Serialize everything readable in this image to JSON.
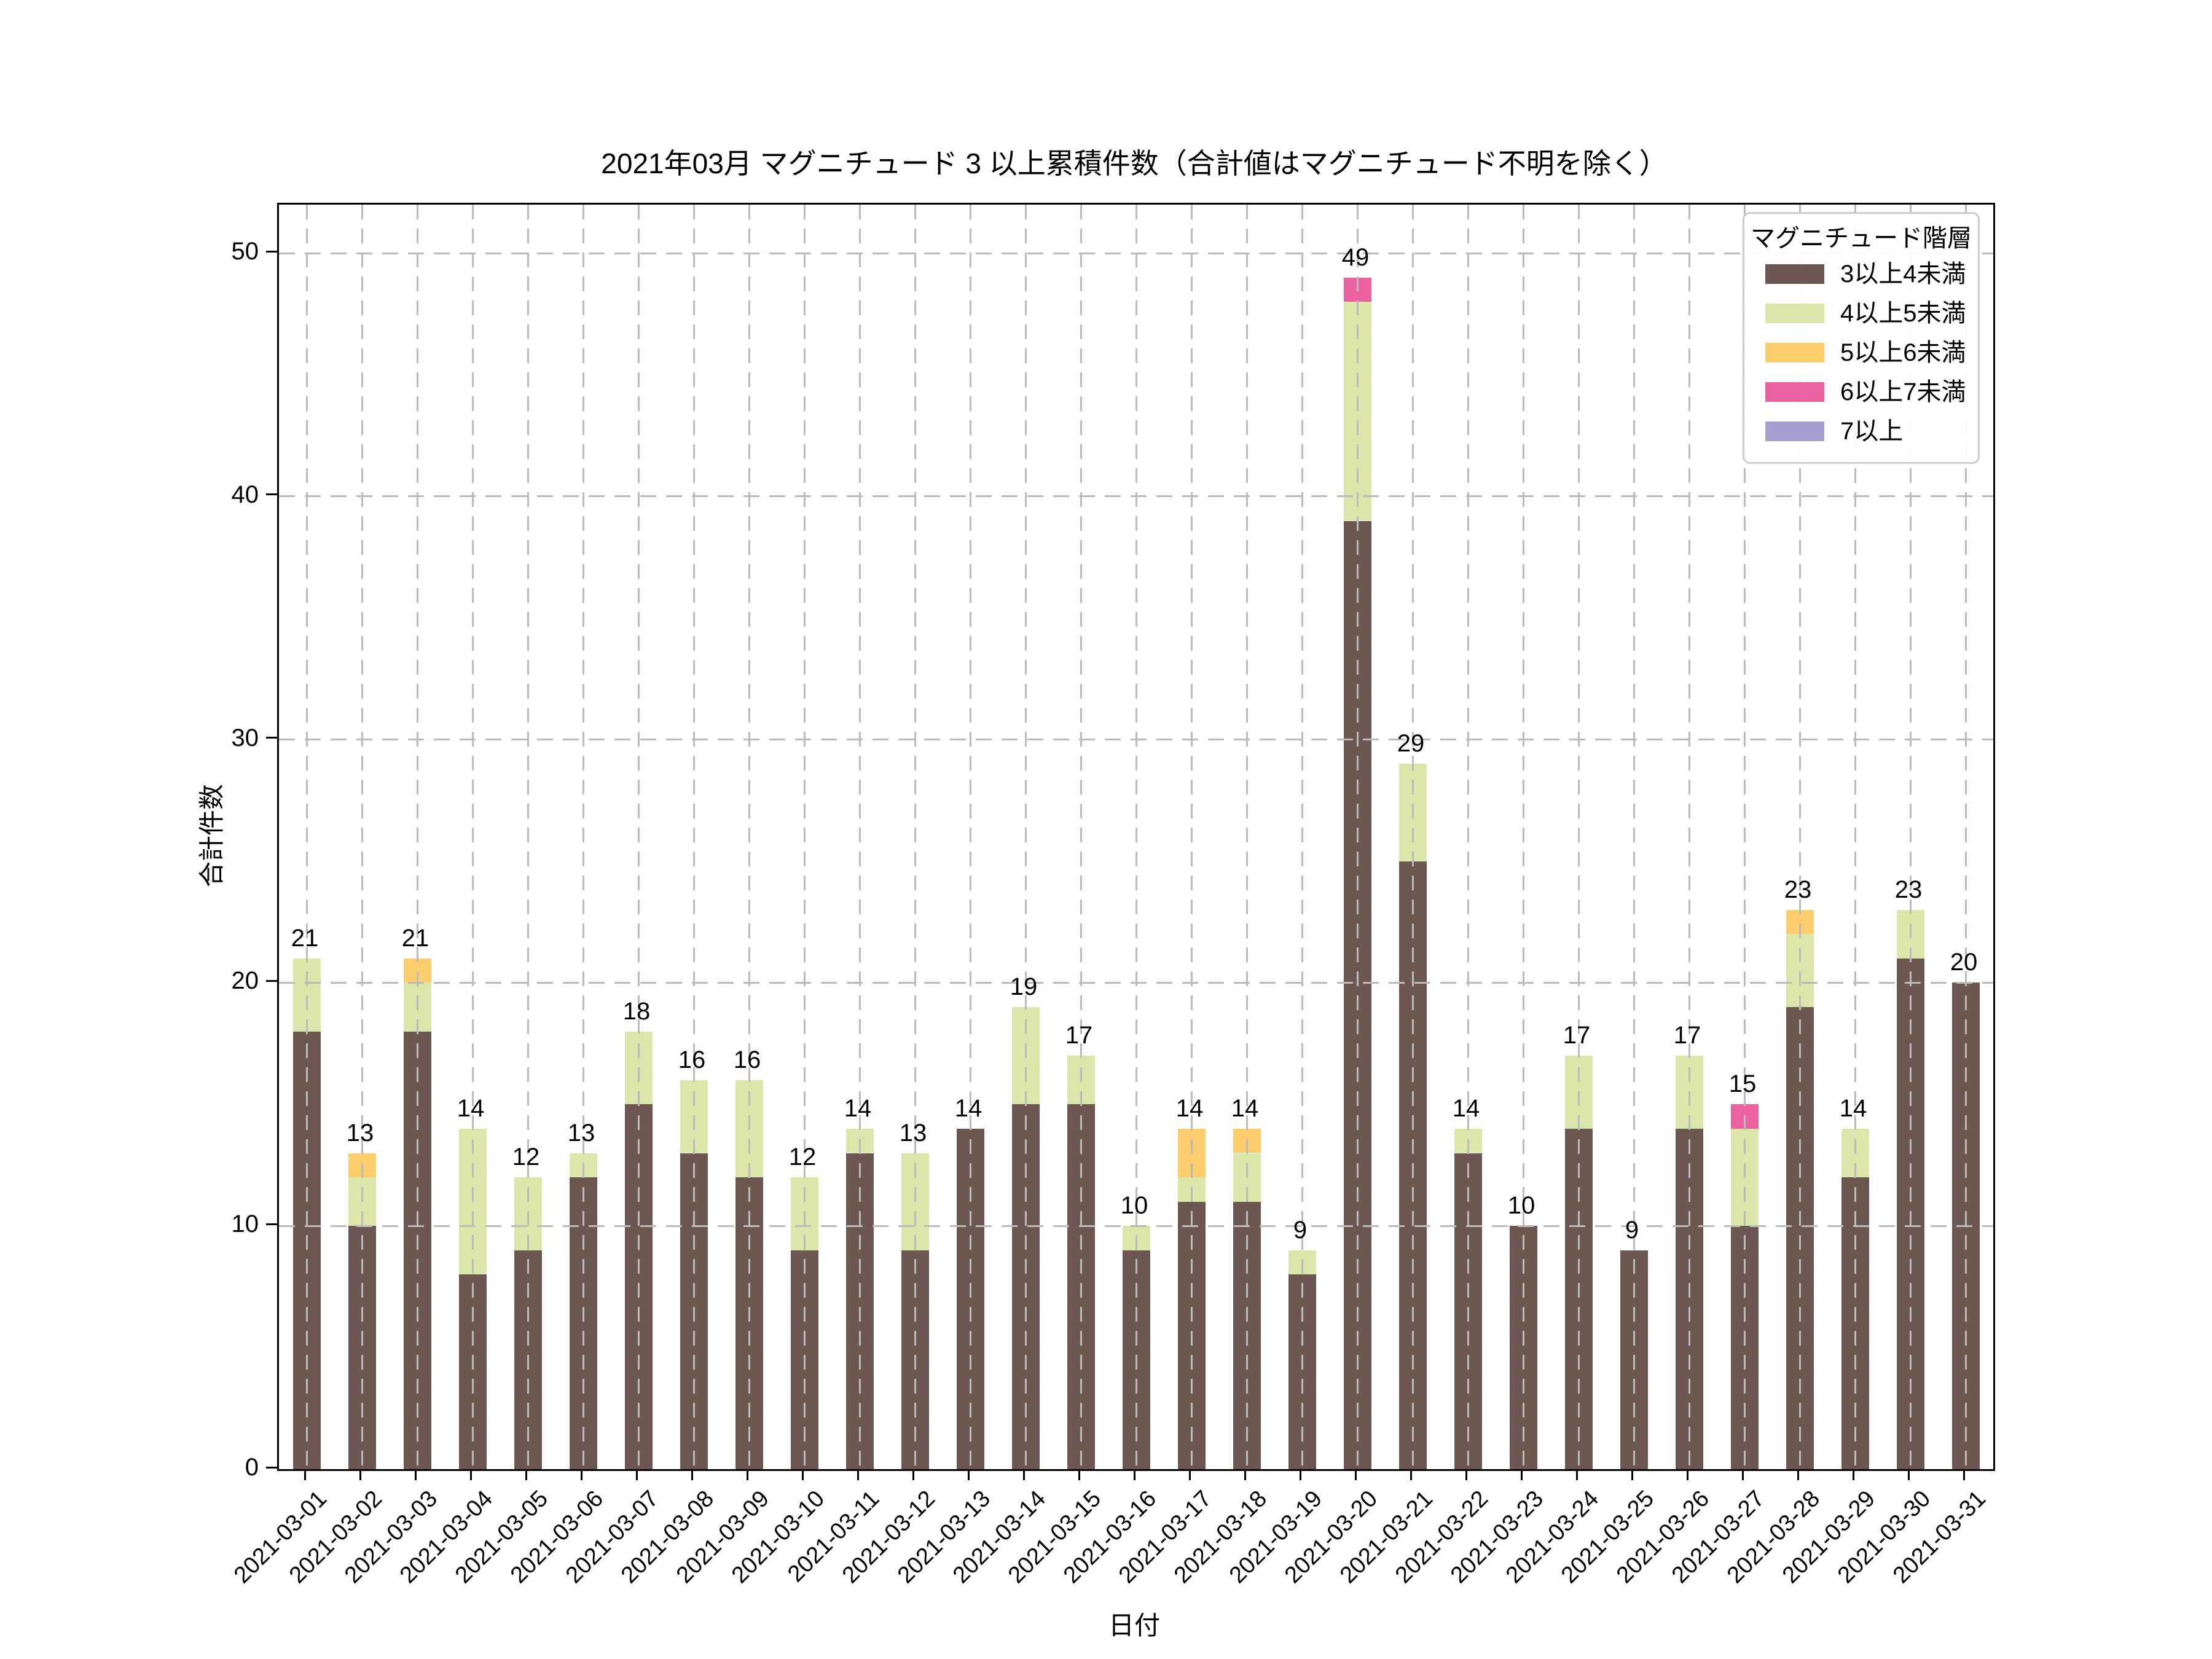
{
  "title": "2021年03月 マグニチュード 3 以上累積件数（合計値はマグニチュード不明を除く）",
  "chart_data": {
    "type": "bar",
    "stacked": true,
    "title": "2021年03月 マグニチュード 3 以上累積件数（合計値はマグニチュード不明を除く）",
    "xlabel": "日付",
    "ylabel": "合計件数",
    "ylim": [
      0,
      52
    ],
    "yticks": [
      0,
      10,
      20,
      30,
      40,
      50
    ],
    "grid": "dashed",
    "legend_title": "マグニチュード階層",
    "legend_position": "upper right",
    "categories": [
      "2021-03-01",
      "2021-03-02",
      "2021-03-03",
      "2021-03-04",
      "2021-03-05",
      "2021-03-06",
      "2021-03-07",
      "2021-03-08",
      "2021-03-09",
      "2021-03-10",
      "2021-03-11",
      "2021-03-12",
      "2021-03-13",
      "2021-03-14",
      "2021-03-15",
      "2021-03-16",
      "2021-03-17",
      "2021-03-18",
      "2021-03-19",
      "2021-03-20",
      "2021-03-21",
      "2021-03-22",
      "2021-03-23",
      "2021-03-24",
      "2021-03-25",
      "2021-03-26",
      "2021-03-27",
      "2021-03-28",
      "2021-03-29",
      "2021-03-30",
      "2021-03-31"
    ],
    "series": [
      {
        "name": "3以上4未満",
        "color": "#6C5850",
        "values": [
          18,
          10,
          18,
          8,
          9,
          12,
          15,
          13,
          12,
          9,
          13,
          9,
          14,
          15,
          15,
          9,
          11,
          11,
          8,
          39,
          25,
          13,
          10,
          14,
          9,
          14,
          10,
          19,
          12,
          21,
          20
        ]
      },
      {
        "name": "4以上5未満",
        "color": "#DAE6AA",
        "values": [
          3,
          2,
          2,
          6,
          3,
          1,
          3,
          3,
          4,
          3,
          1,
          4,
          0,
          4,
          2,
          1,
          1,
          2,
          1,
          9,
          4,
          1,
          0,
          3,
          0,
          3,
          4,
          3,
          2,
          2,
          0
        ]
      },
      {
        "name": "5以上6未満",
        "color": "#FCCD6C",
        "values": [
          0,
          1,
          1,
          0,
          0,
          0,
          0,
          0,
          0,
          0,
          0,
          0,
          0,
          0,
          0,
          0,
          2,
          1,
          0,
          0,
          0,
          0,
          0,
          0,
          0,
          0,
          0,
          1,
          0,
          0,
          0
        ]
      },
      {
        "name": "6以上7未満",
        "color": "#EC619F",
        "values": [
          0,
          0,
          0,
          0,
          0,
          0,
          0,
          0,
          0,
          0,
          0,
          0,
          0,
          0,
          0,
          0,
          0,
          0,
          0,
          1,
          0,
          0,
          0,
          0,
          0,
          0,
          1,
          0,
          0,
          0,
          0
        ]
      },
      {
        "name": "7以上",
        "color": "#A89FD0",
        "values": [
          0,
          0,
          0,
          0,
          0,
          0,
          0,
          0,
          0,
          0,
          0,
          0,
          0,
          0,
          0,
          0,
          0,
          0,
          0,
          0,
          0,
          0,
          0,
          0,
          0,
          0,
          0,
          0,
          0,
          0,
          0
        ]
      }
    ],
    "totals": [
      21,
      13,
      21,
      14,
      12,
      13,
      18,
      16,
      16,
      12,
      14,
      13,
      14,
      19,
      17,
      10,
      14,
      14,
      9,
      49,
      29,
      14,
      10,
      17,
      9,
      17,
      15,
      23,
      14,
      23,
      20
    ]
  }
}
